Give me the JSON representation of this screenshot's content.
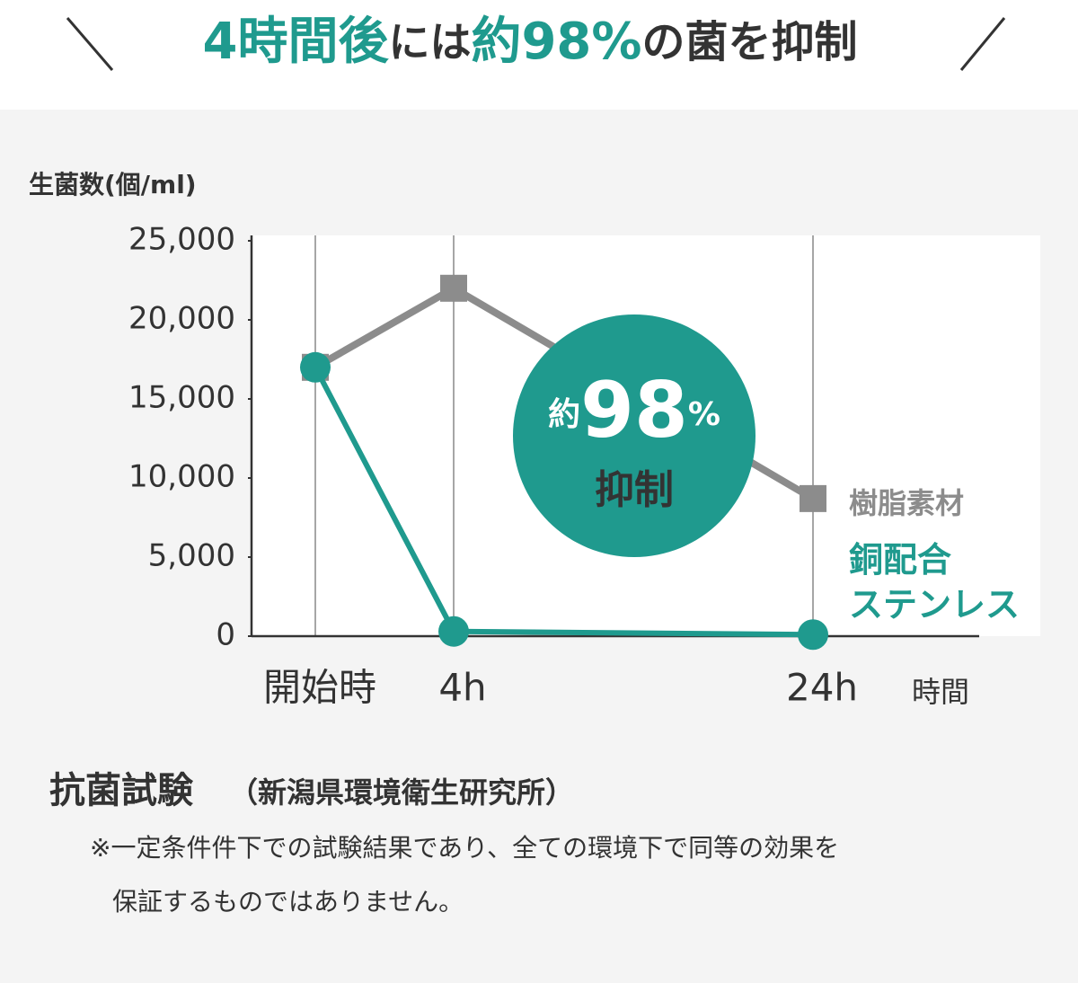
{
  "header": {
    "parts": [
      "4時間後",
      "には",
      "約98%",
      "の菌を抑制"
    ]
  },
  "chart_data": {
    "type": "line",
    "y_label": "生菌数(個/ml)",
    "x_label": "時間",
    "categories": [
      "開始時",
      "4h",
      "24h"
    ],
    "series": [
      {
        "name": "樹脂素材",
        "color": "#8c8c8c",
        "marker": "square",
        "values": [
          17000,
          22000,
          8700
        ]
      },
      {
        "name": "銅配合\nステンレス",
        "color": "#1f9a8e",
        "marker": "circle",
        "values": [
          17000,
          300,
          100
        ]
      }
    ],
    "ylim": [
      0,
      25000
    ],
    "yticks": [
      {
        "value": 0,
        "label": "0"
      },
      {
        "value": 5000,
        "label": "5,000"
      },
      {
        "value": 10000,
        "label": "10,000"
      },
      {
        "value": 15000,
        "label": "15,000"
      },
      {
        "value": 20000,
        "label": "20,000"
      },
      {
        "value": 25000,
        "label": "25,000"
      }
    ],
    "grid": "x",
    "badge": {
      "prefix": "約",
      "number": 98,
      "unit": "%",
      "text": "抑制"
    }
  },
  "footer": {
    "title": "抗菌試験",
    "source": "（新潟県環境衛生研究所）",
    "notes": [
      "※一定条件件下での試験結果であり、全ての環境下で同等の効果を",
      "保証するものではありません。"
    ]
  }
}
